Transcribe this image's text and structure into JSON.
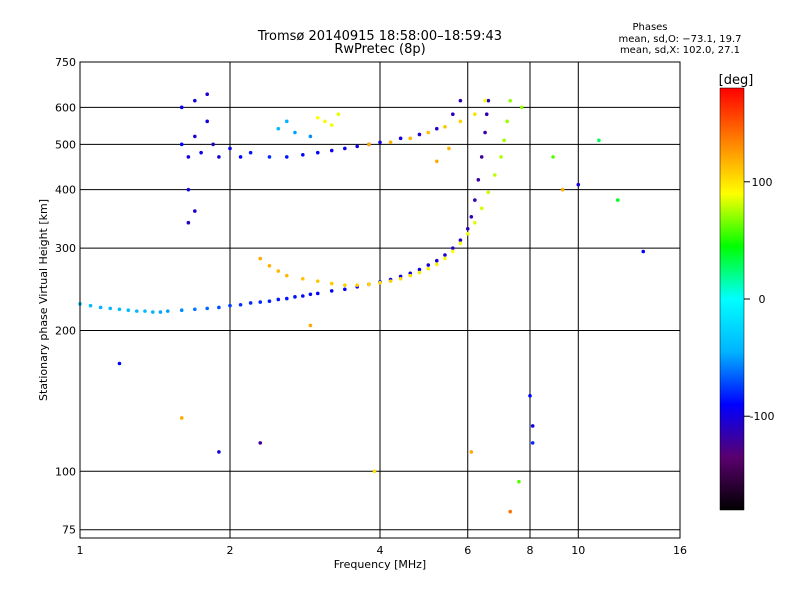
{
  "chart_data": {
    "type": "scatter",
    "title": "Tromsø 20140915 18:58:00–18:59:43",
    "subtitle": "RwPretec (8p)",
    "xlabel": "Frequency [MHz]",
    "ylabel": "Stationary phase Virtual Height [km]",
    "x_scale": "log",
    "y_scale": "log",
    "xlim": [
      1,
      16
    ],
    "ylim": [
      72,
      750
    ],
    "x_ticks": [
      1,
      2,
      4,
      6,
      8,
      10,
      16
    ],
    "y_ticks": [
      75,
      100,
      200,
      300,
      400,
      500,
      600,
      750
    ],
    "grid": true,
    "phase_stats": {
      "title": "Phases",
      "line_o": "mean, sd,O: −73.1, 19.7",
      "line_x": "mean, sd,X: 102.0, 27.1"
    },
    "colorbar": {
      "label": "[deg]",
      "ticks": [
        100,
        0,
        -100
      ],
      "range": [
        -180,
        180
      ],
      "stops": [
        "#000000",
        "#5a006e",
        "#0000ff",
        "#00b4ff",
        "#00ffff",
        "#00ff00",
        "#ffff00",
        "#ff8000",
        "#ff0000"
      ]
    },
    "series": [
      {
        "values": [
          [
            1.0,
            228,
            -40
          ],
          [
            1.05,
            226,
            -40
          ],
          [
            1.1,
            224,
            -45
          ],
          [
            1.15,
            223,
            -42
          ],
          [
            1.2,
            222,
            -40
          ],
          [
            1.25,
            221,
            -40
          ],
          [
            1.3,
            220,
            -42
          ],
          [
            1.35,
            220,
            -40
          ],
          [
            1.4,
            219,
            -45
          ],
          [
            1.45,
            219,
            -48
          ],
          [
            1.5,
            220,
            -50
          ],
          [
            1.6,
            221,
            -55
          ],
          [
            1.7,
            222,
            -60
          ],
          [
            1.8,
            223,
            -65
          ],
          [
            1.9,
            224,
            -70
          ],
          [
            2.0,
            226,
            -75
          ],
          [
            2.1,
            227,
            -78
          ],
          [
            2.2,
            229,
            -80
          ],
          [
            2.3,
            230,
            -80
          ],
          [
            2.4,
            231,
            -82
          ],
          [
            2.5,
            233,
            -85
          ],
          [
            2.6,
            234,
            -85
          ],
          [
            2.7,
            236,
            -85
          ],
          [
            2.8,
            237,
            -88
          ],
          [
            2.9,
            239,
            -88
          ],
          [
            3.0,
            240,
            -90
          ],
          [
            3.2,
            243,
            -92
          ],
          [
            3.4,
            245,
            -92
          ],
          [
            3.6,
            248,
            -95
          ],
          [
            3.8,
            251,
            -95
          ],
          [
            4.0,
            254,
            -95
          ],
          [
            4.2,
            257,
            -98
          ],
          [
            4.4,
            261,
            -98
          ],
          [
            4.6,
            265,
            -100
          ],
          [
            4.8,
            270,
            -100
          ],
          [
            5.0,
            276,
            -102
          ],
          [
            5.2,
            282,
            -105
          ],
          [
            5.4,
            290,
            -105
          ],
          [
            5.6,
            300,
            -108
          ],
          [
            5.8,
            312,
            -110
          ],
          [
            6.0,
            330,
            -112
          ],
          [
            6.1,
            350,
            -112
          ],
          [
            6.2,
            380,
            -115
          ],
          [
            6.3,
            420,
            -118
          ],
          [
            6.4,
            470,
            -120
          ],
          [
            6.5,
            530,
            -118
          ],
          [
            6.55,
            580,
            -115
          ],
          [
            6.6,
            620,
            -110
          ]
        ]
      },
      {
        "values": [
          [
            1.6,
            500,
            -90
          ],
          [
            1.65,
            470,
            -100
          ],
          [
            1.7,
            520,
            -105
          ],
          [
            1.75,
            480,
            -95
          ],
          [
            1.8,
            560,
            -100
          ],
          [
            1.85,
            500,
            -110
          ],
          [
            1.9,
            470,
            -100
          ],
          [
            2.0,
            490,
            -95
          ],
          [
            2.1,
            470,
            -90
          ],
          [
            2.2,
            480,
            -85
          ],
          [
            2.4,
            470,
            -80
          ],
          [
            2.6,
            470,
            -85
          ],
          [
            2.8,
            475,
            -90
          ],
          [
            3.0,
            480,
            -90
          ],
          [
            3.2,
            485,
            -95
          ],
          [
            3.4,
            490,
            -95
          ],
          [
            3.6,
            495,
            -98
          ],
          [
            3.8,
            500,
            -100
          ],
          [
            4.0,
            505,
            -100
          ],
          [
            4.4,
            515,
            -102
          ],
          [
            4.8,
            525,
            -105
          ],
          [
            5.2,
            540,
            -108
          ],
          [
            5.6,
            580,
            -110
          ],
          [
            5.8,
            620,
            -112
          ],
          [
            1.6,
            600,
            -95
          ],
          [
            1.7,
            620,
            -100
          ],
          [
            1.8,
            640,
            -105
          ],
          [
            1.65,
            400,
            -100
          ],
          [
            1.7,
            360,
            -105
          ],
          [
            1.65,
            340,
            -110
          ]
        ]
      },
      {
        "values": [
          [
            2.3,
            285,
            120
          ],
          [
            2.4,
            275,
            118
          ],
          [
            2.5,
            268,
            115
          ],
          [
            2.6,
            262,
            115
          ],
          [
            2.8,
            258,
            112
          ],
          [
            3.0,
            255,
            110
          ],
          [
            3.2,
            252,
            110
          ],
          [
            3.4,
            250,
            108
          ],
          [
            3.6,
            250,
            108
          ],
          [
            3.8,
            251,
            105
          ],
          [
            4.0,
            253,
            105
          ],
          [
            4.2,
            255,
            105
          ],
          [
            4.4,
            258,
            102
          ],
          [
            4.6,
            262,
            100
          ],
          [
            4.8,
            266,
            98
          ],
          [
            5.0,
            271,
            96
          ],
          [
            5.2,
            277,
            94
          ],
          [
            5.4,
            285,
            92
          ],
          [
            5.6,
            295,
            90
          ],
          [
            5.8,
            307,
            88
          ],
          [
            6.0,
            322,
            86
          ],
          [
            6.2,
            340,
            84
          ],
          [
            6.4,
            365,
            82
          ],
          [
            6.6,
            395,
            80
          ],
          [
            6.8,
            430,
            78
          ],
          [
            7.0,
            470,
            76
          ],
          [
            7.1,
            510,
            74
          ],
          [
            7.2,
            560,
            72
          ],
          [
            7.3,
            620,
            70
          ],
          [
            3.8,
            500,
            120
          ],
          [
            4.2,
            505,
            118
          ],
          [
            4.6,
            515,
            115
          ],
          [
            5.0,
            530,
            112
          ],
          [
            5.4,
            545,
            110
          ],
          [
            5.8,
            560,
            105
          ],
          [
            6.2,
            580,
            100
          ],
          [
            6.5,
            620,
            90
          ],
          [
            5.2,
            460,
            120
          ],
          [
            5.5,
            490,
            118
          ]
        ]
      },
      {
        "values": [
          [
            3.0,
            570,
            90
          ],
          [
            3.1,
            560,
            92
          ],
          [
            3.2,
            550,
            88
          ],
          [
            3.3,
            580,
            85
          ],
          [
            2.5,
            540,
            -40
          ],
          [
            2.6,
            560,
            -45
          ],
          [
            2.7,
            530,
            -50
          ],
          [
            2.9,
            520,
            -55
          ],
          [
            1.2,
            170,
            -90
          ],
          [
            1.6,
            130,
            120
          ],
          [
            1.9,
            110,
            -100
          ],
          [
            2.3,
            115,
            -120
          ],
          [
            2.9,
            205,
            120
          ],
          [
            3.9,
            100,
            100
          ],
          [
            6.1,
            110,
            120
          ],
          [
            7.3,
            82,
            140
          ],
          [
            7.6,
            95,
            60
          ],
          [
            8.0,
            145,
            -90
          ],
          [
            8.1,
            125,
            -100
          ],
          [
            8.1,
            115,
            -80
          ],
          [
            8.9,
            470,
            60
          ],
          [
            9.3,
            400,
            120
          ],
          [
            10.0,
            410,
            -100
          ],
          [
            12.0,
            380,
            40
          ],
          [
            13.5,
            295,
            -90
          ],
          [
            11.0,
            510,
            30
          ],
          [
            7.7,
            600,
            70
          ]
        ]
      }
    ]
  }
}
